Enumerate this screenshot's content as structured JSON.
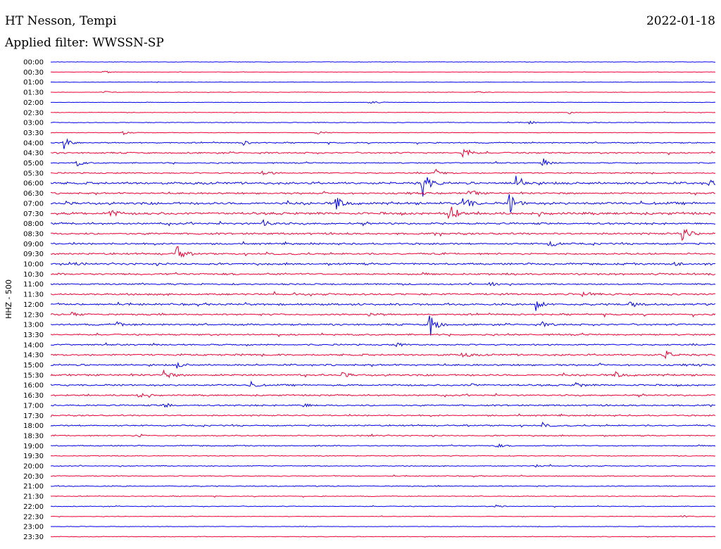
{
  "header": {
    "station": "HT Nesson, Tempi",
    "date": "2022-01-18",
    "filter": "Applied filter: WWSSN-SP"
  },
  "chart_data": {
    "type": "line",
    "title": "HT Nesson, Tempi",
    "subtitle": "Applied filter: WWSSN-SP",
    "date": "2022-01-18",
    "ylabel": "HHZ - 500",
    "xlabel": "",
    "grid": false,
    "legend": "none",
    "colors": [
      "#0000ee",
      "#ee0033"
    ],
    "rows": [
      "00:00",
      "00:30",
      "01:00",
      "01:30",
      "02:00",
      "02:30",
      "03:00",
      "03:30",
      "04:00",
      "04:30",
      "05:00",
      "05:30",
      "06:00",
      "06:30",
      "07:00",
      "07:30",
      "08:00",
      "08:30",
      "09:00",
      "09:30",
      "10:00",
      "10:30",
      "11:00",
      "11:30",
      "12:00",
      "12:30",
      "13:00",
      "13:30",
      "14:00",
      "14:30",
      "15:00",
      "15:30",
      "16:00",
      "16:30",
      "17:00",
      "17:30",
      "18:00",
      "18:30",
      "19:00",
      "19:30",
      "20:00",
      "20:30",
      "21:00",
      "21:30",
      "22:00",
      "22:30",
      "23:00",
      "23:30"
    ],
    "noise_levels": [
      0.25,
      0.2,
      0.25,
      0.25,
      0.25,
      0.3,
      0.35,
      0.3,
      0.6,
      0.8,
      0.6,
      0.7,
      1.2,
      0.9,
      1.3,
      1.3,
      1.0,
      1.0,
      0.9,
      0.9,
      1.0,
      1.0,
      0.8,
      1.0,
      1.0,
      0.9,
      0.9,
      0.8,
      0.8,
      1.0,
      0.9,
      1.0,
      0.9,
      0.8,
      0.8,
      0.7,
      0.7,
      0.6,
      0.6,
      0.5,
      0.5,
      0.5,
      0.5,
      0.4,
      0.4,
      0.3,
      0.3,
      0.35
    ],
    "events": [
      {
        "row": 1,
        "x": 0.08,
        "amp": 2
      },
      {
        "row": 3,
        "x": 0.08,
        "amp": 2
      },
      {
        "row": 3,
        "x": 0.64,
        "amp": 2
      },
      {
        "row": 4,
        "x": 0.48,
        "amp": 3
      },
      {
        "row": 5,
        "x": 0.78,
        "amp": 2
      },
      {
        "row": 6,
        "x": 0.72,
        "amp": 2
      },
      {
        "row": 7,
        "x": 0.11,
        "amp": 3
      },
      {
        "row": 7,
        "x": 0.4,
        "amp": 3
      },
      {
        "row": 8,
        "x": 0.02,
        "amp": 9
      },
      {
        "row": 8,
        "x": 0.29,
        "amp": 3
      },
      {
        "row": 9,
        "x": 0.62,
        "amp": 10
      },
      {
        "row": 10,
        "x": 0.04,
        "amp": 4
      },
      {
        "row": 10,
        "x": 0.74,
        "amp": 6
      },
      {
        "row": 11,
        "x": 0.32,
        "amp": 5
      },
      {
        "row": 11,
        "x": 0.58,
        "amp": 5
      },
      {
        "row": 12,
        "x": 0.56,
        "amp": 18
      },
      {
        "row": 12,
        "x": 0.7,
        "amp": 14
      },
      {
        "row": 12,
        "x": 0.99,
        "amp": 5
      },
      {
        "row": 13,
        "x": 0.63,
        "amp": 6
      },
      {
        "row": 14,
        "x": 0.43,
        "amp": 11
      },
      {
        "row": 14,
        "x": 0.62,
        "amp": 14
      },
      {
        "row": 14,
        "x": 0.69,
        "amp": 16
      },
      {
        "row": 15,
        "x": 0.09,
        "amp": 6
      },
      {
        "row": 15,
        "x": 0.6,
        "amp": 16
      },
      {
        "row": 16,
        "x": 0.32,
        "amp": 5
      },
      {
        "row": 17,
        "x": 0.95,
        "amp": 14
      },
      {
        "row": 18,
        "x": 0.75,
        "amp": 5
      },
      {
        "row": 19,
        "x": 0.19,
        "amp": 12
      },
      {
        "row": 20,
        "x": 0.03,
        "amp": 4
      },
      {
        "row": 20,
        "x": 0.94,
        "amp": 4
      },
      {
        "row": 22,
        "x": 0.66,
        "amp": 4
      },
      {
        "row": 23,
        "x": 0.8,
        "amp": 4
      },
      {
        "row": 24,
        "x": 0.73,
        "amp": 10
      },
      {
        "row": 24,
        "x": 0.87,
        "amp": 6
      },
      {
        "row": 25,
        "x": 0.03,
        "amp": 4
      },
      {
        "row": 25,
        "x": 0.48,
        "amp": 4
      },
      {
        "row": 26,
        "x": 0.1,
        "amp": 3
      },
      {
        "row": 26,
        "x": 0.57,
        "amp": 20
      },
      {
        "row": 26,
        "x": 0.74,
        "amp": 3
      },
      {
        "row": 28,
        "x": 0.52,
        "amp": 3
      },
      {
        "row": 29,
        "x": 0.62,
        "amp": 4
      },
      {
        "row": 29,
        "x": 0.92,
        "amp": 11
      },
      {
        "row": 30,
        "x": 0.19,
        "amp": 4
      },
      {
        "row": 31,
        "x": 0.17,
        "amp": 7
      },
      {
        "row": 31,
        "x": 0.44,
        "amp": 3
      },
      {
        "row": 31,
        "x": 0.85,
        "amp": 5
      },
      {
        "row": 32,
        "x": 0.3,
        "amp": 5
      },
      {
        "row": 32,
        "x": 0.63,
        "amp": 3
      },
      {
        "row": 32,
        "x": 0.79,
        "amp": 4
      },
      {
        "row": 33,
        "x": 0.13,
        "amp": 4
      },
      {
        "row": 34,
        "x": 0.17,
        "amp": 4
      },
      {
        "row": 34,
        "x": 0.38,
        "amp": 3
      },
      {
        "row": 36,
        "x": 0.74,
        "amp": 3
      },
      {
        "row": 37,
        "x": 0.13,
        "amp": 3
      },
      {
        "row": 37,
        "x": 0.48,
        "amp": 2
      },
      {
        "row": 38,
        "x": 0.67,
        "amp": 3
      },
      {
        "row": 40,
        "x": 0.73,
        "amp": 2
      },
      {
        "row": 44,
        "x": 0.67,
        "amp": 2
      },
      {
        "row": 45,
        "x": 0.95,
        "amp": 2
      }
    ]
  }
}
